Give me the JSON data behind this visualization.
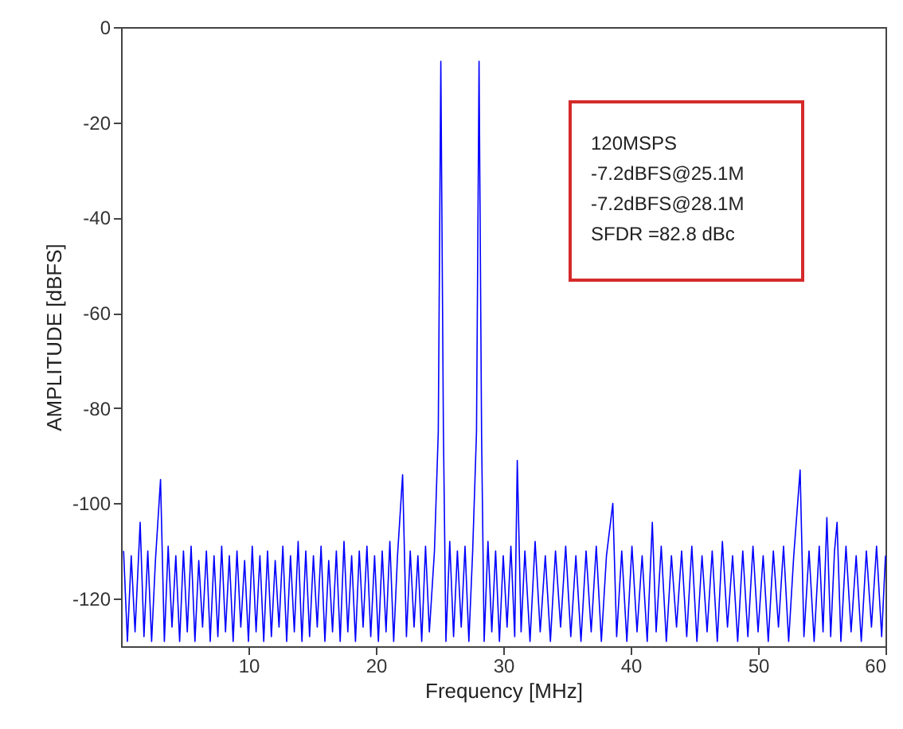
{
  "chart_data": {
    "type": "line",
    "xlabel": "Frequency [MHz]",
    "ylabel": "AMPLITUDE [dBFS]",
    "annotations": [
      "120MSPS",
      "-7.2dBFS@25.1M",
      "-7.2dBFS@28.1M",
      "SFDR =82.8 dBc"
    ],
    "xlim": [
      0,
      60
    ],
    "xticks": [
      10,
      20,
      30,
      40,
      50,
      60
    ],
    "ylim": [
      -130,
      0
    ],
    "yticks": [
      -120,
      -100,
      -80,
      -60,
      -40,
      -20,
      0
    ],
    "grid": false,
    "marker": "none",
    "line_style": "solid",
    "x": [
      0.2,
      0.5,
      0.8,
      1.1,
      1.5,
      1.8,
      2.1,
      2.4,
      2.7,
      3.1,
      3.4,
      3.7,
      4.0,
      4.3,
      4.6,
      4.9,
      5.2,
      5.5,
      5.8,
      6.1,
      6.4,
      6.7,
      7.0,
      7.3,
      7.6,
      7.9,
      8.2,
      8.5,
      8.8,
      9.1,
      9.4,
      9.7,
      10.0,
      10.3,
      10.6,
      10.9,
      11.2,
      11.5,
      11.8,
      12.1,
      12.4,
      12.7,
      13.0,
      13.3,
      13.6,
      13.9,
      14.2,
      14.5,
      14.8,
      15.1,
      15.4,
      15.7,
      16.0,
      16.3,
      16.6,
      16.9,
      17.2,
      17.5,
      17.8,
      18.1,
      18.4,
      18.7,
      19.0,
      19.3,
      19.6,
      19.9,
      20.2,
      20.5,
      20.8,
      21.1,
      21.4,
      21.7,
      22.1,
      22.4,
      22.7,
      23.0,
      23.3,
      23.6,
      23.9,
      24.2,
      24.6,
      24.9,
      25.1,
      25.3,
      25.5,
      25.8,
      26.1,
      26.4,
      26.7,
      27.0,
      27.3,
      27.6,
      27.9,
      28.1,
      28.3,
      28.5,
      28.8,
      29.1,
      29.4,
      29.7,
      30.0,
      30.3,
      30.6,
      30.9,
      31.1,
      31.4,
      31.7,
      32.1,
      32.5,
      32.9,
      33.3,
      33.7,
      34.1,
      34.5,
      34.9,
      35.3,
      35.7,
      36.1,
      36.5,
      36.9,
      37.3,
      37.7,
      38.1,
      38.6,
      38.9,
      39.3,
      39.7,
      40.1,
      40.5,
      40.9,
      41.3,
      41.7,
      42.0,
      42.4,
      42.8,
      43.2,
      43.6,
      44.0,
      44.4,
      44.8,
      45.2,
      45.6,
      46.0,
      46.4,
      46.8,
      47.2,
      47.6,
      48.0,
      48.4,
      48.8,
      49.2,
      49.6,
      50.0,
      50.4,
      50.8,
      51.2,
      51.6,
      52.0,
      52.4,
      52.8,
      53.3,
      53.6,
      54.0,
      54.4,
      54.8,
      55.1,
      55.4,
      55.7,
      56.0,
      56.2,
      56.5,
      56.9,
      57.3,
      57.7,
      58.1,
      58.5,
      58.9,
      59.3,
      59.7,
      60.0
    ],
    "series": [
      {
        "color": "#0000ff",
        "values": [
          -110,
          -129,
          -111,
          -127,
          -104,
          -128,
          -110,
          -129,
          -112,
          -95,
          -129,
          -109,
          -126,
          -111,
          -129,
          -110,
          -127,
          -109,
          -129,
          -112,
          -126,
          -110,
          -129,
          -111,
          -128,
          -109,
          -127,
          -111,
          -129,
          -110,
          -126,
          -112,
          -129,
          -109,
          -127,
          -111,
          -129,
          -110,
          -128,
          -112,
          -126,
          -109,
          -129,
          -111,
          -127,
          -108,
          -129,
          -110,
          -128,
          -111,
          -126,
          -109,
          -129,
          -112,
          -127,
          -110,
          -129,
          -108,
          -127,
          -111,
          -129,
          -110,
          -126,
          -109,
          -128,
          -111,
          -129,
          -110,
          -127,
          -108,
          -129,
          -111,
          -94,
          -128,
          -110,
          -126,
          -111,
          -129,
          -109,
          -127,
          -110,
          -85,
          -7.2,
          -84,
          -129,
          -108,
          -128,
          -110,
          -126,
          -109,
          -129,
          -110,
          -85,
          -7.2,
          -86,
          -129,
          -108,
          -127,
          -110,
          -129,
          -111,
          -126,
          -109,
          -128,
          -91,
          -127,
          -110,
          -129,
          -108,
          -127,
          -111,
          -129,
          -110,
          -126,
          -109,
          -128,
          -111,
          -129,
          -110,
          -127,
          -109,
          -129,
          -111,
          -100,
          -128,
          -110,
          -129,
          -109,
          -127,
          -111,
          -129,
          -104,
          -127,
          -109,
          -129,
          -111,
          -126,
          -110,
          -128,
          -109,
          -129,
          -111,
          -127,
          -110,
          -129,
          -108,
          -126,
          -111,
          -129,
          -110,
          -128,
          -109,
          -127,
          -111,
          -129,
          -110,
          -126,
          -109,
          -129,
          -111,
          -93,
          -128,
          -110,
          -129,
          -109,
          -127,
          -103,
          -128,
          -110,
          -104,
          -129,
          -109,
          -127,
          -111,
          -129,
          -110,
          -126,
          -109,
          -128,
          -111
        ]
      }
    ]
  }
}
